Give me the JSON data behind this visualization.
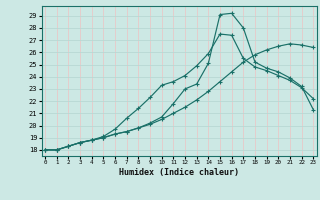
{
  "xlabel": "Humidex (Indice chaleur)",
  "x_ticks": [
    0,
    1,
    2,
    3,
    4,
    5,
    6,
    7,
    8,
    9,
    10,
    11,
    12,
    13,
    14,
    15,
    16,
    17,
    18,
    19,
    20,
    21,
    22,
    23
  ],
  "y_ticks": [
    18,
    19,
    20,
    21,
    22,
    23,
    24,
    25,
    26,
    27,
    28,
    29
  ],
  "ylim": [
    17.5,
    29.8
  ],
  "xlim": [
    -0.3,
    23.3
  ],
  "bg_color": "#cce8e4",
  "grid_color_v": "#e8c8c8",
  "grid_color_h": "#b8d8d4",
  "line_color": "#1a7068",
  "line1_x": [
    0,
    1,
    2,
    3,
    4,
    5,
    6,
    7,
    8,
    9,
    10,
    11,
    12,
    13,
    14,
    15,
    16,
    17,
    18,
    19,
    20,
    21,
    22,
    23
  ],
  "line1_y": [
    18.0,
    18.0,
    18.3,
    18.6,
    18.8,
    19.0,
    19.3,
    19.5,
    19.8,
    20.1,
    20.5,
    21.0,
    21.5,
    22.1,
    22.8,
    23.6,
    24.4,
    25.2,
    25.8,
    26.2,
    26.5,
    26.7,
    26.6,
    26.4
  ],
  "line2_x": [
    0,
    1,
    2,
    3,
    4,
    5,
    6,
    7,
    8,
    9,
    10,
    11,
    12,
    13,
    14,
    15,
    16,
    17,
    18,
    19,
    20,
    21,
    22,
    23
  ],
  "line2_y": [
    18.0,
    18.0,
    18.3,
    18.6,
    18.8,
    19.1,
    19.7,
    20.6,
    21.4,
    22.3,
    23.3,
    23.6,
    24.1,
    24.9,
    25.9,
    27.5,
    27.4,
    25.5,
    24.8,
    24.5,
    24.1,
    23.7,
    23.1,
    22.2
  ],
  "line3_x": [
    0,
    1,
    2,
    3,
    4,
    5,
    6,
    7,
    8,
    9,
    10,
    11,
    12,
    13,
    14,
    15,
    16,
    17,
    18,
    19,
    20,
    21,
    22,
    23
  ],
  "line3_y": [
    18.0,
    18.0,
    18.3,
    18.6,
    18.8,
    19.0,
    19.3,
    19.5,
    19.8,
    20.2,
    20.7,
    21.8,
    23.0,
    23.4,
    25.1,
    29.1,
    29.2,
    28.0,
    25.2,
    24.7,
    24.4,
    23.9,
    23.2,
    21.3
  ]
}
